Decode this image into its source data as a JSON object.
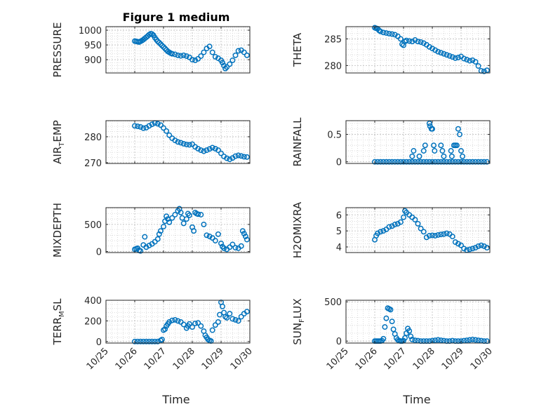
{
  "title": "Figure 1 medium",
  "x_tick_labels": [
    "10/25",
    "10/26",
    "10/27",
    "10/28",
    "10/29",
    "10/30"
  ],
  "x_axis_label": "Time",
  "colors": {
    "marker": "#0072BD",
    "axis": "#262626",
    "grid": "#d4d4d4",
    "background": "#ffffff"
  },
  "chart_data": [
    {
      "type": "scatter",
      "name": "PRESSURE",
      "ylabel": "PRESSURE",
      "ylim": [
        855,
        1012
      ],
      "yticks": [
        900,
        950,
        1000
      ],
      "xlim": [
        0,
        5
      ],
      "grid": true,
      "x": [
        1.0,
        1.05,
        1.1,
        1.15,
        1.2,
        1.25,
        1.3,
        1.35,
        1.4,
        1.45,
        1.5,
        1.55,
        1.6,
        1.65,
        1.7,
        1.75,
        1.8,
        1.85,
        1.9,
        1.95,
        2.0,
        2.05,
        2.1,
        2.15,
        2.2,
        2.25,
        2.3,
        2.4,
        2.5,
        2.6,
        2.7,
        2.8,
        2.9,
        3.0,
        3.1,
        3.2,
        3.3,
        3.4,
        3.5,
        3.6,
        3.7,
        3.8,
        3.9,
        4.0,
        4.05,
        4.1,
        4.15,
        4.2,
        4.3,
        4.4,
        4.5,
        4.6,
        4.7,
        4.8,
        4.9
      ],
      "y": [
        963,
        962,
        961,
        960,
        962,
        965,
        968,
        972,
        976,
        980,
        985,
        988,
        987,
        983,
        975,
        968,
        962,
        958,
        953,
        948,
        943,
        938,
        933,
        928,
        925,
        922,
        920,
        918,
        915,
        913,
        915,
        912,
        908,
        900,
        898,
        903,
        912,
        925,
        938,
        945,
        925,
        910,
        905,
        898,
        890,
        880,
        870,
        875,
        885,
        898,
        915,
        930,
        932,
        925,
        915
      ]
    },
    {
      "type": "scatter",
      "name": "THETA",
      "ylabel": "THETA",
      "ylim": [
        278.6,
        287.3
      ],
      "yticks": [
        280,
        285
      ],
      "xlim": [
        0,
        5
      ],
      "grid": true,
      "x": [
        1.0,
        1.05,
        1.1,
        1.15,
        1.2,
        1.3,
        1.4,
        1.5,
        1.6,
        1.7,
        1.8,
        1.9,
        1.95,
        2.0,
        2.05,
        2.1,
        2.2,
        2.3,
        2.4,
        2.5,
        2.6,
        2.7,
        2.8,
        2.9,
        3.0,
        3.1,
        3.2,
        3.3,
        3.4,
        3.5,
        3.6,
        3.7,
        3.8,
        3.9,
        4.0,
        4.1,
        4.2,
        4.3,
        4.4,
        4.5,
        4.6,
        4.7,
        4.8,
        4.9
      ],
      "y": [
        287.1,
        287.0,
        286.9,
        286.6,
        286.4,
        286.2,
        286.1,
        286.0,
        285.9,
        285.8,
        285.5,
        285.0,
        284.0,
        283.8,
        284.5,
        284.7,
        284.6,
        284.5,
        284.8,
        284.5,
        284.4,
        284.2,
        283.9,
        283.5,
        283.2,
        282.9,
        282.6,
        282.4,
        282.2,
        282.0,
        281.8,
        281.6,
        281.4,
        281.5,
        281.7,
        281.3,
        281.1,
        280.9,
        281.0,
        280.7,
        279.9,
        279.0,
        278.9,
        279.1
      ]
    },
    {
      "type": "scatter",
      "name": "AIR_TEMP",
      "ylabel": "AIR_TEMP",
      "ylim": [
        269.7,
        286.2
      ],
      "yticks": [
        270,
        280
      ],
      "xlim": [
        0,
        5
      ],
      "grid": true,
      "x": [
        1.0,
        1.1,
        1.2,
        1.3,
        1.4,
        1.5,
        1.6,
        1.7,
        1.8,
        1.9,
        2.0,
        2.1,
        2.2,
        2.3,
        2.4,
        2.5,
        2.6,
        2.7,
        2.8,
        2.9,
        3.0,
        3.1,
        3.2,
        3.3,
        3.4,
        3.5,
        3.6,
        3.7,
        3.8,
        3.9,
        4.0,
        4.1,
        4.2,
        4.3,
        4.4,
        4.5,
        4.6,
        4.7,
        4.8,
        4.9
      ],
      "y": [
        284.2,
        284.0,
        283.8,
        283.3,
        283.5,
        284.2,
        284.8,
        285.3,
        285.0,
        284.5,
        283.4,
        282.2,
        280.6,
        279.4,
        278.6,
        278.0,
        277.7,
        277.3,
        277.0,
        276.9,
        277.1,
        276.1,
        275.4,
        274.8,
        274.4,
        274.8,
        275.3,
        275.8,
        275.4,
        274.8,
        273.6,
        272.4,
        271.7,
        271.3,
        271.8,
        272.5,
        272.8,
        272.6,
        272.3,
        272.2
      ]
    },
    {
      "type": "scatter",
      "name": "RAINFALL",
      "ylabel": "RAINFALL",
      "ylim": [
        -0.03,
        0.75
      ],
      "yticks": [
        0,
        0.5
      ],
      "xlim": [
        0,
        5
      ],
      "grid": true,
      "x": [
        1.0,
        1.1,
        1.2,
        1.3,
        1.4,
        1.5,
        1.6,
        1.7,
        1.8,
        1.9,
        2.0,
        2.1,
        2.2,
        2.3,
        2.4,
        2.5,
        2.6,
        2.7,
        2.8,
        2.9,
        3.0,
        3.1,
        3.2,
        3.3,
        3.4,
        3.5,
        3.6,
        3.7,
        3.8,
        3.9,
        4.0,
        4.1,
        4.2,
        4.3,
        4.4,
        4.5,
        4.6,
        4.7,
        4.8,
        4.9,
        2.3,
        2.35,
        2.55,
        2.7,
        2.75,
        2.9,
        2.92,
        2.97,
        3.0,
        3.05,
        3.08,
        3.3,
        3.35,
        3.4,
        3.65,
        3.68,
        3.75,
        3.8,
        3.85,
        3.9,
        3.95,
        4.0,
        4.05
      ],
      "y": [
        0,
        0,
        0,
        0,
        0,
        0,
        0,
        0,
        0,
        0,
        0,
        0,
        0,
        0,
        0,
        0,
        0,
        0,
        0,
        0,
        0,
        0,
        0,
        0,
        0,
        0,
        0,
        0,
        0,
        0,
        0,
        0,
        0,
        0,
        0,
        0,
        0,
        0,
        0,
        0,
        0.1,
        0.2,
        0.1,
        0.2,
        0.3,
        0.7,
        0.65,
        0.6,
        0.6,
        0.3,
        0.2,
        0.3,
        0.2,
        0.1,
        0.2,
        0.1,
        0.3,
        0.3,
        0.3,
        0.6,
        0.5,
        0.2,
        0.1
      ]
    },
    {
      "type": "scatter",
      "name": "MIXDEPTH",
      "ylabel": "MIXDEPTH",
      "ylim": [
        -20,
        810
      ],
      "yticks": [
        0,
        500
      ],
      "xlim": [
        0,
        5
      ],
      "grid": true,
      "x": [
        1.0,
        1.05,
        1.1,
        1.15,
        1.2,
        1.3,
        1.35,
        1.4,
        1.5,
        1.6,
        1.7,
        1.8,
        1.85,
        1.9,
        2.0,
        2.05,
        2.1,
        2.15,
        2.2,
        2.3,
        2.4,
        2.5,
        2.55,
        2.6,
        2.65,
        2.7,
        2.8,
        2.85,
        2.9,
        3.0,
        3.05,
        3.1,
        3.15,
        3.2,
        3.3,
        3.4,
        3.5,
        3.6,
        3.7,
        3.8,
        3.9,
        4.0,
        4.05,
        4.1,
        4.2,
        4.3,
        4.4,
        4.5,
        4.6,
        4.7,
        4.75,
        4.8,
        4.85,
        4.9
      ],
      "y": [
        40,
        50,
        60,
        20,
        10,
        120,
        270,
        80,
        110,
        140,
        180,
        230,
        320,
        380,
        460,
        560,
        650,
        600,
        540,
        620,
        680,
        750,
        790,
        720,
        620,
        520,
        600,
        700,
        670,
        450,
        380,
        720,
        700,
        690,
        680,
        500,
        300,
        280,
        250,
        200,
        320,
        150,
        90,
        60,
        40,
        80,
        130,
        70,
        60,
        100,
        380,
        330,
        280,
        220
      ]
    },
    {
      "type": "scatter",
      "name": "H2OMIXRA",
      "ylabel": "H2OMIXRA",
      "ylim": [
        3.65,
        6.45
      ],
      "yticks": [
        4,
        5,
        6
      ],
      "xlim": [
        0,
        5
      ],
      "grid": true,
      "x": [
        1.0,
        1.05,
        1.1,
        1.2,
        1.3,
        1.4,
        1.5,
        1.6,
        1.7,
        1.8,
        1.9,
        2.0,
        2.05,
        2.1,
        2.2,
        2.3,
        2.4,
        2.5,
        2.6,
        2.7,
        2.8,
        2.9,
        3.0,
        3.1,
        3.2,
        3.3,
        3.4,
        3.5,
        3.6,
        3.7,
        3.8,
        3.9,
        4.0,
        4.1,
        4.2,
        4.3,
        4.4,
        4.5,
        4.6,
        4.7,
        4.8,
        4.9
      ],
      "y": [
        4.45,
        4.7,
        4.85,
        4.95,
        5.0,
        5.1,
        5.25,
        5.3,
        5.4,
        5.45,
        5.55,
        5.85,
        6.25,
        6.15,
        6.0,
        5.85,
        5.7,
        5.45,
        5.15,
        4.95,
        4.6,
        4.7,
        4.72,
        4.7,
        4.75,
        4.78,
        4.8,
        4.85,
        4.8,
        4.65,
        4.3,
        4.2,
        4.1,
        3.9,
        3.8,
        3.85,
        3.9,
        3.95,
        4.05,
        4.1,
        4.05,
        3.95
      ]
    },
    {
      "type": "scatter",
      "name": "TERR_MSL",
      "ylabel": "TERR_MSL",
      "ylim": [
        -15,
        400
      ],
      "yticks": [
        0,
        200,
        400
      ],
      "xlim": [
        0,
        5
      ],
      "grid": true,
      "x": [
        1.0,
        1.1,
        1.2,
        1.3,
        1.4,
        1.5,
        1.6,
        1.7,
        1.8,
        1.9,
        1.95,
        2.0,
        2.05,
        2.1,
        2.15,
        2.2,
        2.3,
        2.4,
        2.5,
        2.6,
        2.7,
        2.8,
        2.85,
        2.9,
        3.0,
        3.1,
        3.2,
        3.3,
        3.4,
        3.45,
        3.5,
        3.55,
        3.6,
        3.65,
        3.7,
        3.8,
        3.9,
        3.95,
        4.0,
        4.05,
        4.1,
        4.15,
        4.2,
        4.3,
        4.4,
        4.5,
        4.6,
        4.7,
        4.8,
        4.9
      ],
      "y": [
        0,
        0,
        0,
        0,
        0,
        0,
        0,
        0,
        0,
        10,
        20,
        110,
        120,
        150,
        170,
        190,
        205,
        210,
        200,
        190,
        165,
        130,
        150,
        170,
        140,
        175,
        180,
        150,
        100,
        60,
        40,
        20,
        10,
        5,
        110,
        160,
        190,
        260,
        380,
        340,
        280,
        240,
        230,
        270,
        220,
        210,
        200,
        240,
        270,
        290
      ]
    },
    {
      "type": "scatter",
      "name": "SUN_FLUX",
      "ylabel": "SUN_FLUX",
      "ylim": [
        -25,
        520
      ],
      "yticks": [
        0,
        500
      ],
      "xlim": [
        0,
        5
      ],
      "grid": true,
      "x": [
        1.0,
        1.05,
        1.1,
        1.15,
        1.2,
        1.25,
        1.3,
        1.35,
        1.4,
        1.45,
        1.5,
        1.55,
        1.6,
        1.65,
        1.7,
        1.75,
        1.8,
        1.85,
        1.9,
        1.95,
        2.0,
        2.05,
        2.1,
        2.15,
        2.2,
        2.25,
        2.3,
        2.4,
        2.5,
        2.6,
        2.7,
        2.8,
        2.9,
        3.0,
        3.1,
        3.2,
        3.3,
        3.4,
        3.5,
        3.6,
        3.7,
        3.8,
        3.9,
        4.0,
        4.1,
        4.2,
        4.3,
        4.4,
        4.5,
        4.6,
        4.7,
        4.8,
        4.9
      ],
      "y": [
        0,
        0,
        0,
        0,
        0,
        5,
        30,
        180,
        290,
        420,
        410,
        400,
        250,
        150,
        90,
        40,
        15,
        5,
        0,
        0,
        5,
        40,
        100,
        160,
        130,
        60,
        20,
        10,
        5,
        0,
        0,
        0,
        0,
        5,
        10,
        15,
        10,
        5,
        0,
        0,
        5,
        0,
        0,
        0,
        5,
        10,
        15,
        20,
        15,
        10,
        5,
        0,
        0
      ]
    }
  ]
}
